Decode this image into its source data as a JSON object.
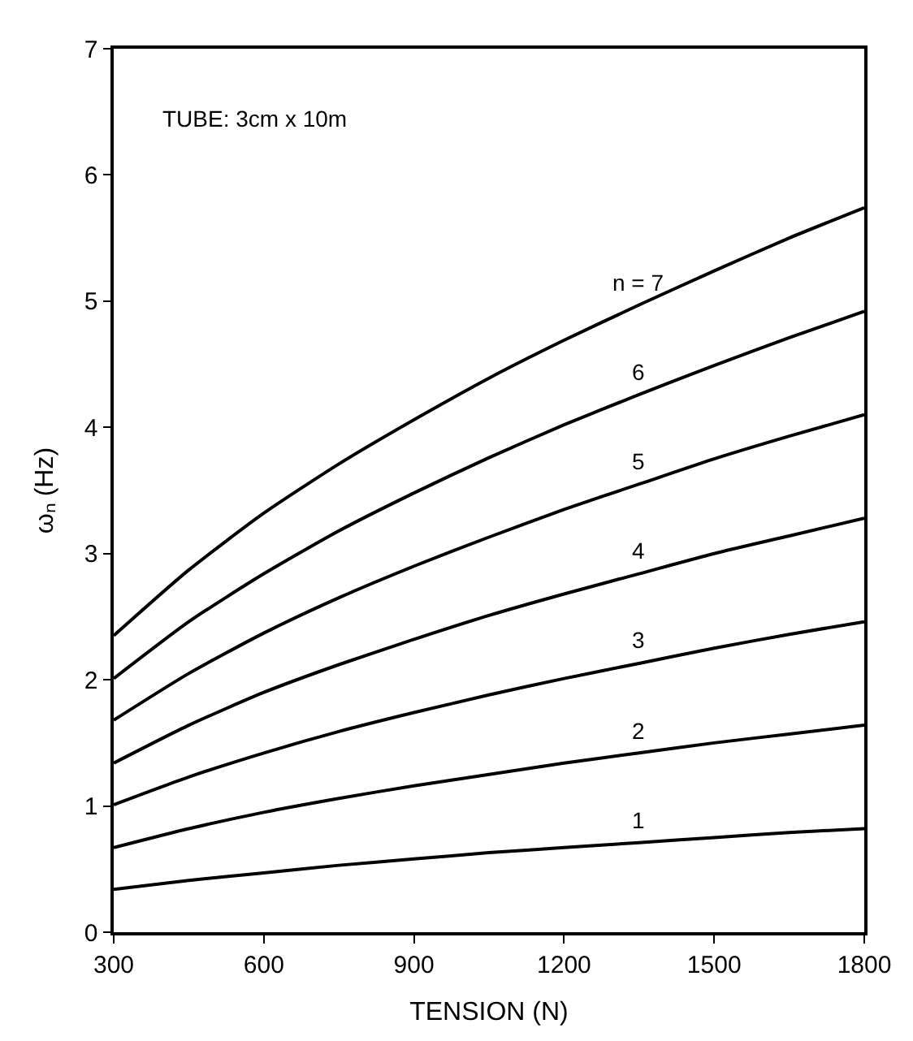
{
  "chart_data": {
    "type": "line",
    "xlabel": "TENSION (N)",
    "ylabel": "ωₙ (Hz)",
    "x": [
      300,
      450,
      600,
      750,
      900,
      1050,
      1200,
      1350,
      1500,
      1650,
      1800
    ],
    "series": [
      {
        "name": "1",
        "color": "#000000",
        "values": [
          0.34,
          0.41,
          0.47,
          0.53,
          0.58,
          0.63,
          0.67,
          0.71,
          0.75,
          0.79,
          0.82
        ]
      },
      {
        "name": "2",
        "color": "#000000",
        "values": [
          0.67,
          0.82,
          0.95,
          1.06,
          1.16,
          1.25,
          1.34,
          1.42,
          1.5,
          1.57,
          1.64
        ]
      },
      {
        "name": "3",
        "color": "#000000",
        "values": [
          1.01,
          1.23,
          1.42,
          1.59,
          1.74,
          1.88,
          2.01,
          2.13,
          2.25,
          2.36,
          2.46
        ]
      },
      {
        "name": "4",
        "color": "#000000",
        "values": [
          1.34,
          1.64,
          1.9,
          2.12,
          2.32,
          2.51,
          2.68,
          2.84,
          3.0,
          3.14,
          3.28
        ]
      },
      {
        "name": "5",
        "color": "#000000",
        "values": [
          1.68,
          2.05,
          2.37,
          2.65,
          2.9,
          3.13,
          3.35,
          3.55,
          3.75,
          3.93,
          4.1
        ]
      },
      {
        "name": "6",
        "color": "#000000",
        "values": [
          2.01,
          2.46,
          2.84,
          3.18,
          3.48,
          3.76,
          4.02,
          4.26,
          4.49,
          4.71,
          4.92
        ]
      },
      {
        "name": "n = 7",
        "color": "#000000",
        "values": [
          2.35,
          2.87,
          3.32,
          3.71,
          4.06,
          4.39,
          4.69,
          4.97,
          5.24,
          5.5,
          5.74
        ]
      }
    ],
    "annotations": [
      "TUBE: 3cm x 10m"
    ],
    "xlim": [
      300,
      1800
    ],
    "xticks": [
      300,
      600,
      900,
      1200,
      1500,
      1800
    ],
    "ylim": [
      0,
      7
    ],
    "yticks": [
      0,
      1,
      2,
      3,
      4,
      5,
      6,
      7
    ],
    "legend": false,
    "marker": "none",
    "line_style": "solid"
  }
}
